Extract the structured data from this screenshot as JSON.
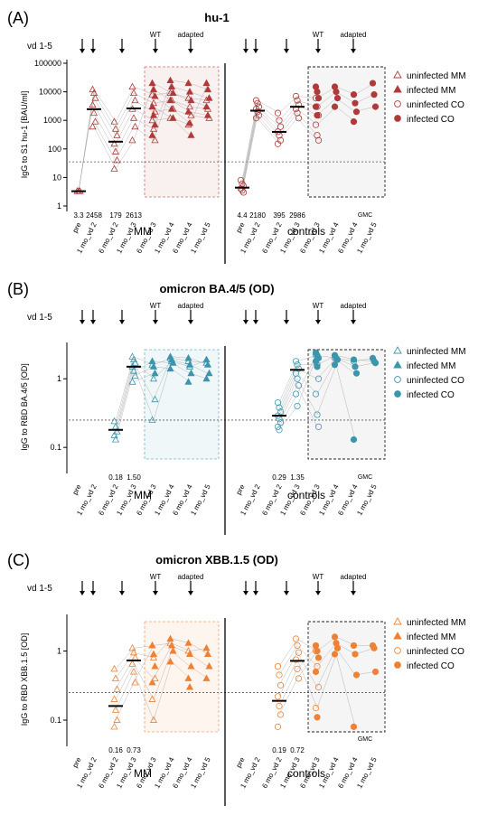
{
  "dose_label": "vd 1-5",
  "vaccine_labels": {
    "wt": "WT",
    "adapted": "adapted"
  },
  "group_labels": {
    "mm": "MM",
    "controls": "controls"
  },
  "gmc_label": "GMC",
  "colors": {
    "hu1": "#b03a3a",
    "ba45": "#3d95ad",
    "xbb15": "#ee8133",
    "grid": "#888888"
  },
  "chart_data": [
    {
      "panel": "(A)",
      "type": "scatter",
      "title": "hu-1",
      "ylabel": "IgG to S1 hu-1 [BAU/ml]",
      "yscale": "log",
      "ylim": [
        1,
        100000
      ],
      "yticks": [
        "1",
        "10",
        "100",
        "1000",
        "10000",
        "100000"
      ],
      "threshold": 35.2,
      "categories": [
        "pre",
        "1 mo_vd 2",
        "6 mo_vd 2",
        "1 mo_vd 3",
        "6 mo_vd 3",
        "1 mo_vd 4",
        "6 mo_vd 4",
        "1 mo_vd 5"
      ],
      "legend": [
        "uninfected MM",
        "infected MM",
        "uninfected CO",
        "infected CO"
      ],
      "series": [
        {
          "name": "MM",
          "gmc": [
            3.3,
            2458,
            179,
            2613
          ],
          "gmc_labels": [
            "3.3",
            "2458",
            "179",
            "2613"
          ],
          "uninfected": [
            [
              3.3,
              3.3,
              3.3
            ],
            [
              12000,
              9000,
              6000,
              3500,
              1800,
              900,
              600
            ],
            [
              900,
              500,
              300,
              150,
              80,
              40,
              20
            ],
            [
              15000,
              9000,
              5000,
              2500,
              1200,
              600,
              200
            ],
            [
              8000,
              4000,
              2000,
              1000,
              500,
              200
            ],
            [
              9000,
              5000,
              2500,
              1200
            ],
            [
              6000,
              3000,
              1500,
              700
            ],
            [
              5000,
              2500,
              1200
            ]
          ],
          "infected": [
            [],
            [],
            [],
            [],
            [
              20000,
              12000,
              7000,
              3000,
              1500,
              700,
              300
            ],
            [
              25000,
              15000,
              9000,
              5000,
              2500,
              1200
            ],
            [
              20000,
              10000,
              5000,
              2000,
              800,
              300
            ],
            [
              20000,
              12000,
              6000,
              3000,
              1500
            ]
          ]
        },
        {
          "name": "controls",
          "gmc": [
            4.4,
            2180,
            395,
            2986
          ],
          "gmc_labels": [
            "4.4",
            "2180",
            "395",
            "2986"
          ],
          "uninfected": [
            [
              8,
              6,
              5,
              4,
              3.5,
              3
            ],
            [
              5000,
              4000,
              3000,
              2500,
              2000,
              1500,
              1200
            ],
            [
              1800,
              1000,
              600,
              400,
              300,
              200,
              150
            ],
            [
              7000,
              5000,
              3500,
              2500,
              1800,
              1200
            ],
            [
              6000,
              3000,
              1500,
              700,
              300,
              200
            ],
            [],
            [],
            []
          ],
          "infected": [
            [],
            [],
            [],
            [],
            [
              15000,
              10000,
              6000,
              3000,
              1500
            ],
            [
              15000,
              10000,
              6000,
              3000
            ],
            [
              8000,
              4000,
              2000,
              900
            ],
            [
              20000,
              8000,
              3000
            ]
          ]
        }
      ]
    },
    {
      "panel": "(B)",
      "type": "scatter",
      "title": "omicron BA.4/5 (OD)",
      "ylabel": "IgG to RBD  BA.4/5 [OD]",
      "yscale": "log",
      "ylim": [
        0.05,
        3
      ],
      "yticks": [
        "0.1",
        "1"
      ],
      "threshold": 0.25,
      "categories": [
        "pre",
        "1 mo_vd 2",
        "6 mo_vd 2",
        "1 mo_vd 3",
        "6 mo_vd 3",
        "1 mo_vd 4",
        "6 mo_vd 4",
        "1 mo_vd 5"
      ],
      "legend": [
        "uninfected MM",
        "infected MM",
        "uninfected CO",
        "infected CO"
      ],
      "series": [
        {
          "name": "MM",
          "gmc": [
            null,
            null,
            0.18,
            1.5
          ],
          "gmc_labels": [
            "",
            "",
            "0.18",
            "1.50"
          ],
          "uninfected": [
            [],
            [],
            [
              0.24,
              0.2,
              0.17,
              0.15,
              0.13
            ],
            [
              2.1,
              1.9,
              1.7,
              1.5,
              1.3,
              1.1,
              0.9
            ],
            [
              1.6,
              1.0,
              0.5,
              0.25
            ],
            [
              2.0,
              1.8
            ],
            [
              1.8,
              1.5
            ],
            [
              1.7
            ]
          ],
          "infected": [
            [],
            [],
            [],
            [],
            [
              1.8,
              1.5,
              1.2
            ],
            [
              2.1,
              1.9,
              1.7,
              1.4
            ],
            [
              2.0,
              1.6,
              1.2,
              0.9
            ],
            [
              1.9,
              1.6,
              1.2,
              1.0
            ]
          ]
        },
        {
          "name": "controls",
          "gmc": [
            null,
            null,
            0.29,
            1.35
          ],
          "gmc_labels": [
            "",
            "",
            "0.29",
            "1.35"
          ],
          "uninfected": [
            [],
            [],
            [
              0.45,
              0.38,
              0.33,
              0.29,
              0.26,
              0.23,
              0.2,
              0.18
            ],
            [
              1.8,
              1.6,
              1.4,
              1.2,
              1.0,
              0.8,
              0.6,
              0.4
            ],
            [
              2.2,
              1.6,
              1.0,
              0.6,
              0.3,
              0.2
            ],
            [
              2.0
            ],
            [
              1.8
            ],
            []
          ],
          "infected": [
            [],
            [],
            [],
            [],
            [
              2.4,
              2.2,
              2.0,
              1.8,
              1.5
            ],
            [
              2.2,
              2.0,
              1.9,
              1.6
            ],
            [
              1.9,
              1.5,
              1.2,
              0.13
            ],
            [
              2.0,
              1.8,
              1.7
            ]
          ]
        }
      ]
    },
    {
      "panel": "(C)",
      "type": "scatter",
      "title": "omicron XBB.1.5 (OD)",
      "ylabel": "IgG to RBD  XBB.1.5 [OD]",
      "yscale": "log",
      "ylim": [
        0.05,
        3
      ],
      "yticks": [
        "0.1",
        "1"
      ],
      "threshold": 0.25,
      "categories": [
        "pre",
        "1 mo_vd 2",
        "6 mo_vd 2",
        "1 mo_vd 3",
        "6 mo_vd 3",
        "1 mo_vd 4",
        "6 mo_vd 4",
        "1 mo_vd 5"
      ],
      "legend": [
        "uninfected MM",
        "infected MM",
        "uninfected CO",
        "infected CO"
      ],
      "series": [
        {
          "name": "MM",
          "gmc": [
            null,
            null,
            0.16,
            0.73
          ],
          "gmc_labels": [
            "",
            "",
            "0.16",
            "0.73"
          ],
          "uninfected": [
            [],
            [],
            [
              0.55,
              0.4,
              0.28,
              0.2,
              0.14,
              0.1,
              0.08
            ],
            [
              1.1,
              0.95,
              0.8,
              0.65,
              0.5,
              0.35
            ],
            [
              1.2,
              0.8,
              0.4,
              0.2,
              0.1
            ],
            [
              1.3
            ],
            [
              1.0
            ],
            []
          ],
          "infected": [
            [],
            [],
            [],
            [],
            [
              1.2,
              0.9,
              0.6,
              0.35
            ],
            [
              1.5,
              1.2,
              1.0,
              0.7
            ],
            [
              1.3,
              0.9,
              0.6,
              0.4,
              0.3
            ],
            [
              1.1,
              0.9,
              0.6,
              0.4
            ]
          ]
        },
        {
          "name": "controls",
          "gmc": [
            null,
            null,
            0.19,
            0.72
          ],
          "gmc_labels": [
            "",
            "",
            "0.19",
            "0.72"
          ],
          "uninfected": [
            [],
            [],
            [
              0.6,
              0.45,
              0.32,
              0.22,
              0.16,
              0.12,
              0.08
            ],
            [
              1.5,
              1.2,
              0.95,
              0.75,
              0.55,
              0.4
            ],
            [
              1.0,
              0.6,
              0.3,
              0.15
            ],
            [],
            [],
            []
          ],
          "infected": [
            [],
            [],
            [],
            [],
            [
              1.2,
              1.0,
              0.8,
              0.5,
              0.11
            ],
            [
              1.6,
              1.3,
              1.1,
              0.9
            ],
            [
              1.2,
              0.9,
              0.45,
              0.08
            ],
            [
              1.2,
              1.1,
              0.5
            ]
          ]
        }
      ]
    }
  ]
}
